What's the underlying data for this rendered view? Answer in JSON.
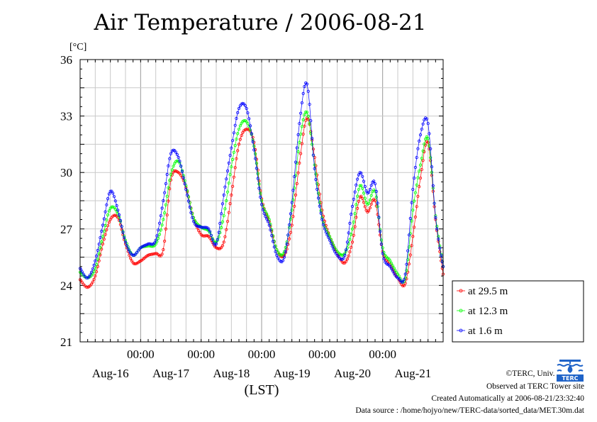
{
  "chart_data": {
    "type": "line",
    "title": "Air Temperature / 2006-08-21",
    "ylabel": "[°C]",
    "xlabel": "(LST)",
    "ylim": [
      21,
      36
    ],
    "yticks": [
      "21",
      "24",
      "27",
      "30",
      "33",
      "36"
    ],
    "x_time_labels": [
      "00:00",
      "00:00",
      "00:00",
      "00:00",
      "00:00"
    ],
    "x_day_labels": [
      "Aug-16",
      "Aug-17",
      "Aug-18",
      "Aug-19",
      "Aug-20",
      "Aug-21"
    ],
    "xlim_hours": [
      0,
      144
    ],
    "grid": true,
    "legend_position": "right",
    "series": [
      {
        "name": "at 29.5 m",
        "color": "#ff0000",
        "points": [
          [
            0,
            24.3
          ],
          [
            3,
            23.9
          ],
          [
            6,
            24.5
          ],
          [
            9,
            26.2
          ],
          [
            12,
            27.5
          ],
          [
            15,
            27.6
          ],
          [
            18,
            26.2
          ],
          [
            21,
            25.2
          ],
          [
            24,
            25.3
          ],
          [
            27,
            25.6
          ],
          [
            30,
            25.7
          ],
          [
            33,
            25.9
          ],
          [
            36,
            29.6
          ],
          [
            39,
            30.0
          ],
          [
            42,
            29.2
          ],
          [
            45,
            27.6
          ],
          [
            48,
            26.7
          ],
          [
            51,
            26.6
          ],
          [
            54,
            26.0
          ],
          [
            57,
            26.3
          ],
          [
            60,
            28.8
          ],
          [
            63,
            31.5
          ],
          [
            66,
            32.3
          ],
          [
            69,
            31.6
          ],
          [
            72,
            28.6
          ],
          [
            75,
            27.4
          ],
          [
            78,
            25.9
          ],
          [
            81,
            25.6
          ],
          [
            84,
            27.2
          ],
          [
            87,
            30.5
          ],
          [
            90,
            32.9
          ],
          [
            93,
            30.8
          ],
          [
            96,
            28.0
          ],
          [
            99,
            26.6
          ],
          [
            102,
            25.7
          ],
          [
            105,
            25.2
          ],
          [
            108,
            26.3
          ],
          [
            111,
            28.7
          ],
          [
            114,
            27.9
          ],
          [
            117,
            28.5
          ],
          [
            120,
            25.8
          ],
          [
            123,
            25.1
          ],
          [
            126,
            24.4
          ],
          [
            129,
            24.1
          ],
          [
            132,
            26.6
          ],
          [
            135,
            29.7
          ],
          [
            138,
            31.6
          ],
          [
            141,
            27.5
          ],
          [
            144,
            24.6
          ]
        ]
      },
      {
        "name": "at 12.3 m",
        "color": "#00ff00",
        "points": [
          [
            0,
            24.7
          ],
          [
            3,
            24.4
          ],
          [
            6,
            24.9
          ],
          [
            9,
            26.6
          ],
          [
            12,
            28.1
          ],
          [
            15,
            27.8
          ],
          [
            18,
            26.4
          ],
          [
            21,
            25.6
          ],
          [
            24,
            26.0
          ],
          [
            27,
            26.1
          ],
          [
            30,
            26.2
          ],
          [
            33,
            27.5
          ],
          [
            36,
            29.9
          ],
          [
            39,
            30.6
          ],
          [
            42,
            29.3
          ],
          [
            45,
            27.6
          ],
          [
            48,
            27.1
          ],
          [
            51,
            26.9
          ],
          [
            54,
            26.3
          ],
          [
            57,
            27.7
          ],
          [
            60,
            30.3
          ],
          [
            63,
            32.3
          ],
          [
            66,
            32.7
          ],
          [
            69,
            31.4
          ],
          [
            72,
            28.5
          ],
          [
            75,
            27.5
          ],
          [
            78,
            25.9
          ],
          [
            81,
            25.8
          ],
          [
            84,
            28.0
          ],
          [
            87,
            31.6
          ],
          [
            90,
            33.2
          ],
          [
            93,
            30.4
          ],
          [
            96,
            27.6
          ],
          [
            99,
            26.6
          ],
          [
            102,
            25.8
          ],
          [
            105,
            25.7
          ],
          [
            108,
            27.0
          ],
          [
            111,
            29.3
          ],
          [
            114,
            28.3
          ],
          [
            117,
            29.0
          ],
          [
            120,
            26.0
          ],
          [
            123,
            25.3
          ],
          [
            126,
            24.6
          ],
          [
            129,
            24.4
          ],
          [
            132,
            28.0
          ],
          [
            135,
            30.4
          ],
          [
            138,
            31.8
          ],
          [
            141,
            27.7
          ],
          [
            144,
            25.0
          ]
        ]
      },
      {
        "name": "at 1.6 m",
        "color": "#0000ff",
        "points": [
          [
            0,
            24.9
          ],
          [
            3,
            24.4
          ],
          [
            6,
            25.3
          ],
          [
            9,
            27.2
          ],
          [
            12,
            29.0
          ],
          [
            15,
            28.0
          ],
          [
            18,
            26.3
          ],
          [
            21,
            25.6
          ],
          [
            24,
            26.0
          ],
          [
            27,
            26.2
          ],
          [
            30,
            26.4
          ],
          [
            33,
            28.5
          ],
          [
            36,
            31.0
          ],
          [
            39,
            30.8
          ],
          [
            42,
            29.1
          ],
          [
            45,
            27.4
          ],
          [
            48,
            27.1
          ],
          [
            51,
            27.0
          ],
          [
            54,
            26.2
          ],
          [
            57,
            28.8
          ],
          [
            60,
            31.3
          ],
          [
            63,
            33.4
          ],
          [
            66,
            33.4
          ],
          [
            69,
            31.2
          ],
          [
            72,
            28.3
          ],
          [
            75,
            27.2
          ],
          [
            78,
            25.6
          ],
          [
            81,
            25.5
          ],
          [
            84,
            28.4
          ],
          [
            87,
            32.6
          ],
          [
            90,
            34.7
          ],
          [
            93,
            30.2
          ],
          [
            96,
            27.5
          ],
          [
            99,
            26.4
          ],
          [
            102,
            25.6
          ],
          [
            105,
            25.6
          ],
          [
            108,
            28.2
          ],
          [
            111,
            30.0
          ],
          [
            114,
            28.9
          ],
          [
            117,
            29.4
          ],
          [
            120,
            25.7
          ],
          [
            123,
            25.0
          ],
          [
            126,
            24.4
          ],
          [
            129,
            24.6
          ],
          [
            132,
            29.1
          ],
          [
            135,
            32.0
          ],
          [
            138,
            32.6
          ],
          [
            141,
            27.6
          ],
          [
            144,
            25.0
          ]
        ]
      }
    ]
  },
  "footer": {
    "copyright": "©TERC, Univ. Tsukuba",
    "site": "Observed at TERC Tower site",
    "created": "Created Automatically at 2006-08-21/23:32:40",
    "source": "Data source : /home/hojyo/new/TERC-data/sorted_data/MET.30m.dat"
  },
  "logo": {
    "icon": "terc-logo-icon",
    "text": "TERC"
  }
}
